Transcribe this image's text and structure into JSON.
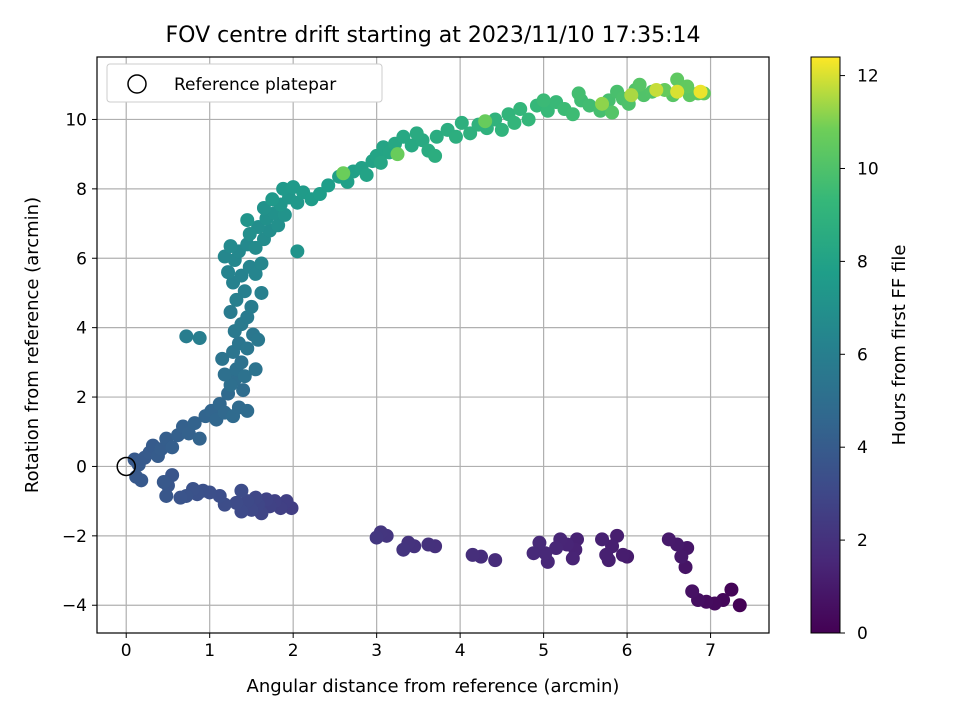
{
  "chart_data": {
    "type": "scatter",
    "title": "FOV centre drift starting at 2023/11/10 17:35:14",
    "xlabel": "Angular distance from reference (arcmin)",
    "ylabel": "Rotation from reference (arcmin)",
    "xlim": [
      -0.35,
      7.7
    ],
    "ylim": [
      -4.8,
      11.8
    ],
    "xticks": [
      0,
      1,
      2,
      3,
      4,
      5,
      6,
      7
    ],
    "yticks": [
      -4,
      -2,
      0,
      2,
      4,
      6,
      8,
      10
    ],
    "grid": true,
    "colormap": "viridis",
    "colorbar": {
      "label": "Hours from first FF file",
      "range": [
        0,
        12.4
      ],
      "ticks": [
        0,
        2,
        4,
        6,
        8,
        10,
        12
      ]
    },
    "legend": {
      "position": "top-left",
      "entries": [
        "Reference platepar"
      ]
    },
    "reference_point": {
      "x": 0,
      "y": 0,
      "label": "Reference platepar"
    },
    "points": [
      {
        "x": 7.35,
        "y": -4.0,
        "h": 0.05
      },
      {
        "x": 7.25,
        "y": -3.55,
        "h": 0.15
      },
      {
        "x": 7.15,
        "y": -3.85,
        "h": 0.25
      },
      {
        "x": 7.05,
        "y": -3.95,
        "h": 0.35
      },
      {
        "x": 6.95,
        "y": -3.9,
        "h": 0.45
      },
      {
        "x": 6.85,
        "y": -3.85,
        "h": 0.55
      },
      {
        "x": 6.78,
        "y": -3.6,
        "h": 0.65
      },
      {
        "x": 6.7,
        "y": -2.9,
        "h": 0.75
      },
      {
        "x": 6.72,
        "y": -2.35,
        "h": 0.85
      },
      {
        "x": 6.65,
        "y": -2.6,
        "h": 0.9
      },
      {
        "x": 6.6,
        "y": -2.25,
        "h": 0.95
      },
      {
        "x": 6.5,
        "y": -2.1,
        "h": 1.0
      },
      {
        "x": 6.0,
        "y": -2.6,
        "h": 1.05
      },
      {
        "x": 5.95,
        "y": -2.55,
        "h": 1.1
      },
      {
        "x": 5.88,
        "y": -2.0,
        "h": 1.15
      },
      {
        "x": 5.82,
        "y": -2.3,
        "h": 1.2
      },
      {
        "x": 5.78,
        "y": -2.7,
        "h": 1.22
      },
      {
        "x": 5.75,
        "y": -2.55,
        "h": 1.25
      },
      {
        "x": 5.7,
        "y": -2.1,
        "h": 1.28
      },
      {
        "x": 5.4,
        "y": -2.1,
        "h": 1.32
      },
      {
        "x": 5.38,
        "y": -2.4,
        "h": 1.36
      },
      {
        "x": 5.35,
        "y": -2.65,
        "h": 1.4
      },
      {
        "x": 5.28,
        "y": -2.25,
        "h": 1.45
      },
      {
        "x": 5.2,
        "y": -2.1,
        "h": 1.48
      },
      {
        "x": 5.15,
        "y": -2.35,
        "h": 1.52
      },
      {
        "x": 5.05,
        "y": -2.75,
        "h": 1.55
      },
      {
        "x": 5.02,
        "y": -2.5,
        "h": 1.58
      },
      {
        "x": 4.95,
        "y": -2.2,
        "h": 1.62
      },
      {
        "x": 4.88,
        "y": -2.5,
        "h": 1.66
      },
      {
        "x": 4.42,
        "y": -2.7,
        "h": 1.75
      },
      {
        "x": 4.25,
        "y": -2.6,
        "h": 1.8
      },
      {
        "x": 4.15,
        "y": -2.55,
        "h": 1.85
      },
      {
        "x": 3.7,
        "y": -2.3,
        "h": 1.9
      },
      {
        "x": 3.62,
        "y": -2.25,
        "h": 1.95
      },
      {
        "x": 3.45,
        "y": -2.3,
        "h": 2.0
      },
      {
        "x": 3.38,
        "y": -2.2,
        "h": 2.05
      },
      {
        "x": 3.32,
        "y": -2.4,
        "h": 2.1
      },
      {
        "x": 3.12,
        "y": -2.0,
        "h": 2.15
      },
      {
        "x": 3.05,
        "y": -1.9,
        "h": 2.2
      },
      {
        "x": 3.0,
        "y": -2.05,
        "h": 2.25
      },
      {
        "x": 1.98,
        "y": -1.2,
        "h": 2.55
      },
      {
        "x": 1.92,
        "y": -1.0,
        "h": 2.6
      },
      {
        "x": 1.85,
        "y": -1.2,
        "h": 2.65
      },
      {
        "x": 1.78,
        "y": -1.0,
        "h": 2.7
      },
      {
        "x": 1.72,
        "y": -1.15,
        "h": 2.75
      },
      {
        "x": 1.68,
        "y": -0.95,
        "h": 2.8
      },
      {
        "x": 1.62,
        "y": -1.35,
        "h": 2.85
      },
      {
        "x": 1.58,
        "y": -1.1,
        "h": 2.9
      },
      {
        "x": 1.55,
        "y": -0.9,
        "h": 2.95
      },
      {
        "x": 1.5,
        "y": -1.25,
        "h": 3.0
      },
      {
        "x": 1.45,
        "y": -1.0,
        "h": 3.05
      },
      {
        "x": 1.38,
        "y": -1.3,
        "h": 3.1
      },
      {
        "x": 1.32,
        "y": -1.05,
        "h": 3.15
      },
      {
        "x": 1.38,
        "y": -0.7,
        "h": 3.2
      },
      {
        "x": 1.18,
        "y": -1.1,
        "h": 3.25
      },
      {
        "x": 1.12,
        "y": -0.85,
        "h": 3.3
      },
      {
        "x": 1.0,
        "y": -0.75,
        "h": 3.35
      },
      {
        "x": 0.92,
        "y": -0.7,
        "h": 3.4
      },
      {
        "x": 0.85,
        "y": -0.8,
        "h": 3.45
      },
      {
        "x": 0.8,
        "y": -0.65,
        "h": 3.5
      },
      {
        "x": 0.72,
        "y": -0.85,
        "h": 3.55
      },
      {
        "x": 0.65,
        "y": -0.9,
        "h": 3.6
      },
      {
        "x": 0.55,
        "y": -0.25,
        "h": 3.65
      },
      {
        "x": 0.5,
        "y": -0.55,
        "h": 3.7
      },
      {
        "x": 0.48,
        "y": -0.85,
        "h": 3.75
      },
      {
        "x": 0.45,
        "y": -0.45,
        "h": 3.8
      },
      {
        "x": 0.12,
        "y": -0.3,
        "h": 3.85
      },
      {
        "x": 0.18,
        "y": -0.4,
        "h": 3.88
      },
      {
        "x": 0.1,
        "y": 0.2,
        "h": 3.9
      },
      {
        "x": 0.15,
        "y": 0.05,
        "h": 3.92
      },
      {
        "x": 0.22,
        "y": 0.25,
        "h": 3.95
      },
      {
        "x": 0.28,
        "y": 0.4,
        "h": 3.98
      },
      {
        "x": 0.32,
        "y": 0.6,
        "h": 4.0
      },
      {
        "x": 0.38,
        "y": 0.3,
        "h": 4.05
      },
      {
        "x": 0.42,
        "y": 0.5,
        "h": 4.1
      },
      {
        "x": 0.48,
        "y": 0.8,
        "h": 4.15
      },
      {
        "x": 0.55,
        "y": 0.55,
        "h": 4.2
      },
      {
        "x": 0.62,
        "y": 0.9,
        "h": 4.25
      },
      {
        "x": 0.68,
        "y": 1.15,
        "h": 4.3
      },
      {
        "x": 0.75,
        "y": 0.95,
        "h": 4.35
      },
      {
        "x": 0.82,
        "y": 1.25,
        "h": 4.4
      },
      {
        "x": 0.88,
        "y": 0.8,
        "h": 4.45
      },
      {
        "x": 0.95,
        "y": 1.45,
        "h": 4.5
      },
      {
        "x": 1.02,
        "y": 1.6,
        "h": 4.55
      },
      {
        "x": 1.08,
        "y": 1.35,
        "h": 4.6
      },
      {
        "x": 1.12,
        "y": 1.8,
        "h": 4.65
      },
      {
        "x": 1.18,
        "y": 1.55,
        "h": 4.7
      },
      {
        "x": 1.22,
        "y": 2.1,
        "h": 4.75
      },
      {
        "x": 1.28,
        "y": 1.45,
        "h": 4.8
      },
      {
        "x": 1.35,
        "y": 1.7,
        "h": 4.85
      },
      {
        "x": 1.45,
        "y": 1.6,
        "h": 4.9
      },
      {
        "x": 1.4,
        "y": 2.2,
        "h": 4.95
      },
      {
        "x": 1.3,
        "y": 2.5,
        "h": 5.0
      },
      {
        "x": 1.25,
        "y": 2.35,
        "h": 5.05
      },
      {
        "x": 1.18,
        "y": 2.65,
        "h": 5.1
      },
      {
        "x": 1.32,
        "y": 2.8,
        "h": 5.15
      },
      {
        "x": 1.38,
        "y": 3.0,
        "h": 5.2
      },
      {
        "x": 1.42,
        "y": 2.6,
        "h": 5.25
      },
      {
        "x": 1.55,
        "y": 2.8,
        "h": 5.3
      },
      {
        "x": 1.15,
        "y": 3.1,
        "h": 5.35
      },
      {
        "x": 1.28,
        "y": 3.3,
        "h": 5.4
      },
      {
        "x": 1.35,
        "y": 3.55,
        "h": 5.45
      },
      {
        "x": 1.45,
        "y": 3.4,
        "h": 5.5
      },
      {
        "x": 1.52,
        "y": 3.8,
        "h": 5.55
      },
      {
        "x": 1.58,
        "y": 3.65,
        "h": 5.6
      },
      {
        "x": 1.3,
        "y": 3.9,
        "h": 5.65
      },
      {
        "x": 1.38,
        "y": 4.1,
        "h": 5.7
      },
      {
        "x": 1.45,
        "y": 4.3,
        "h": 5.75
      },
      {
        "x": 1.25,
        "y": 4.45,
        "h": 5.8
      },
      {
        "x": 1.5,
        "y": 4.6,
        "h": 5.85
      },
      {
        "x": 0.72,
        "y": 3.75,
        "h": 5.9
      },
      {
        "x": 0.88,
        "y": 3.7,
        "h": 5.95
      },
      {
        "x": 1.32,
        "y": 4.8,
        "h": 6.0
      },
      {
        "x": 1.42,
        "y": 5.05,
        "h": 6.05
      },
      {
        "x": 1.62,
        "y": 5.0,
        "h": 6.1
      },
      {
        "x": 1.28,
        "y": 5.3,
        "h": 6.15
      },
      {
        "x": 1.38,
        "y": 5.5,
        "h": 6.2
      },
      {
        "x": 1.22,
        "y": 5.6,
        "h": 6.25
      },
      {
        "x": 1.48,
        "y": 5.75,
        "h": 6.3
      },
      {
        "x": 1.55,
        "y": 5.55,
        "h": 6.35
      },
      {
        "x": 1.62,
        "y": 5.85,
        "h": 6.4
      },
      {
        "x": 1.3,
        "y": 5.95,
        "h": 6.45
      },
      {
        "x": 1.18,
        "y": 6.05,
        "h": 6.5
      },
      {
        "x": 1.35,
        "y": 6.2,
        "h": 6.55
      },
      {
        "x": 1.45,
        "y": 6.4,
        "h": 6.6
      },
      {
        "x": 1.25,
        "y": 6.35,
        "h": 6.65
      },
      {
        "x": 1.55,
        "y": 6.3,
        "h": 6.7
      },
      {
        "x": 1.65,
        "y": 6.55,
        "h": 6.75
      },
      {
        "x": 1.72,
        "y": 6.8,
        "h": 6.8
      },
      {
        "x": 1.58,
        "y": 6.9,
        "h": 6.85
      },
      {
        "x": 1.48,
        "y": 6.7,
        "h": 6.9
      },
      {
        "x": 1.82,
        "y": 6.95,
        "h": 6.95
      },
      {
        "x": 1.68,
        "y": 7.15,
        "h": 7.0
      },
      {
        "x": 1.78,
        "y": 7.3,
        "h": 7.05
      },
      {
        "x": 1.65,
        "y": 7.45,
        "h": 7.1
      },
      {
        "x": 1.9,
        "y": 7.25,
        "h": 7.15
      },
      {
        "x": 2.05,
        "y": 6.2,
        "h": 7.2
      },
      {
        "x": 1.45,
        "y": 7.1,
        "h": 7.25
      },
      {
        "x": 1.85,
        "y": 7.55,
        "h": 7.3
      },
      {
        "x": 1.95,
        "y": 7.75,
        "h": 7.35
      },
      {
        "x": 2.05,
        "y": 7.6,
        "h": 7.4
      },
      {
        "x": 1.75,
        "y": 7.7,
        "h": 7.45
      },
      {
        "x": 1.88,
        "y": 8.0,
        "h": 7.5
      },
      {
        "x": 2.0,
        "y": 8.05,
        "h": 7.55
      },
      {
        "x": 2.12,
        "y": 7.9,
        "h": 7.6
      },
      {
        "x": 2.22,
        "y": 7.7,
        "h": 7.65
      },
      {
        "x": 2.32,
        "y": 7.85,
        "h": 7.7
      },
      {
        "x": 2.42,
        "y": 8.1,
        "h": 7.75
      },
      {
        "x": 2.55,
        "y": 8.35,
        "h": 7.8
      },
      {
        "x": 2.65,
        "y": 8.2,
        "h": 7.85
      },
      {
        "x": 2.72,
        "y": 8.5,
        "h": 7.9
      },
      {
        "x": 2.82,
        "y": 8.6,
        "h": 7.95
      },
      {
        "x": 2.95,
        "y": 8.8,
        "h": 8.0
      },
      {
        "x": 2.88,
        "y": 8.4,
        "h": 8.05
      },
      {
        "x": 3.0,
        "y": 8.95,
        "h": 8.1
      },
      {
        "x": 3.08,
        "y": 9.2,
        "h": 8.15
      },
      {
        "x": 3.15,
        "y": 9.05,
        "h": 8.2
      },
      {
        "x": 3.05,
        "y": 8.75,
        "h": 8.25
      },
      {
        "x": 3.22,
        "y": 9.3,
        "h": 8.3
      },
      {
        "x": 3.32,
        "y": 9.5,
        "h": 8.35
      },
      {
        "x": 3.42,
        "y": 9.25,
        "h": 8.4
      },
      {
        "x": 3.55,
        "y": 9.4,
        "h": 8.45
      },
      {
        "x": 3.48,
        "y": 9.6,
        "h": 8.5
      },
      {
        "x": 3.62,
        "y": 9.1,
        "h": 8.55
      },
      {
        "x": 3.72,
        "y": 9.5,
        "h": 8.6
      },
      {
        "x": 3.85,
        "y": 9.7,
        "h": 8.65
      },
      {
        "x": 3.7,
        "y": 8.95,
        "h": 8.7
      },
      {
        "x": 3.95,
        "y": 9.5,
        "h": 8.75
      },
      {
        "x": 4.02,
        "y": 9.9,
        "h": 8.8
      },
      {
        "x": 4.12,
        "y": 9.6,
        "h": 8.85
      },
      {
        "x": 4.22,
        "y": 9.85,
        "h": 8.9
      },
      {
        "x": 4.32,
        "y": 9.75,
        "h": 8.95
      },
      {
        "x": 4.42,
        "y": 10.0,
        "h": 9.0
      },
      {
        "x": 4.5,
        "y": 9.7,
        "h": 9.05
      },
      {
        "x": 4.58,
        "y": 10.15,
        "h": 9.1
      },
      {
        "x": 4.65,
        "y": 9.9,
        "h": 9.15
      },
      {
        "x": 4.72,
        "y": 10.3,
        "h": 9.2
      },
      {
        "x": 4.82,
        "y": 10.0,
        "h": 9.25
      },
      {
        "x": 4.92,
        "y": 10.4,
        "h": 9.3
      },
      {
        "x": 5.05,
        "y": 10.25,
        "h": 9.35
      },
      {
        "x": 5.15,
        "y": 10.5,
        "h": 9.4
      },
      {
        "x": 5.0,
        "y": 10.55,
        "h": 9.45
      },
      {
        "x": 5.25,
        "y": 10.3,
        "h": 9.5
      },
      {
        "x": 5.35,
        "y": 10.15,
        "h": 9.55
      },
      {
        "x": 5.45,
        "y": 10.55,
        "h": 9.6
      },
      {
        "x": 5.55,
        "y": 10.4,
        "h": 9.65
      },
      {
        "x": 5.42,
        "y": 10.75,
        "h": 9.7
      },
      {
        "x": 5.68,
        "y": 10.25,
        "h": 9.75
      },
      {
        "x": 5.78,
        "y": 10.55,
        "h": 9.8
      },
      {
        "x": 5.88,
        "y": 10.8,
        "h": 9.85
      },
      {
        "x": 5.95,
        "y": 10.6,
        "h": 9.9
      },
      {
        "x": 6.02,
        "y": 10.45,
        "h": 9.95
      },
      {
        "x": 6.1,
        "y": 10.85,
        "h": 10.0
      },
      {
        "x": 6.2,
        "y": 10.7,
        "h": 10.05
      },
      {
        "x": 6.3,
        "y": 10.8,
        "h": 10.1
      },
      {
        "x": 5.82,
        "y": 10.2,
        "h": 10.15
      },
      {
        "x": 6.15,
        "y": 11.0,
        "h": 10.2
      },
      {
        "x": 6.55,
        "y": 10.7,
        "h": 10.25
      },
      {
        "x": 6.65,
        "y": 10.9,
        "h": 10.3
      },
      {
        "x": 6.75,
        "y": 10.7,
        "h": 10.35
      },
      {
        "x": 6.85,
        "y": 10.75,
        "h": 10.4
      },
      {
        "x": 6.6,
        "y": 11.15,
        "h": 10.45
      },
      {
        "x": 6.72,
        "y": 10.95,
        "h": 10.5
      },
      {
        "x": 6.92,
        "y": 10.75,
        "h": 10.55
      },
      {
        "x": 6.45,
        "y": 10.85,
        "h": 10.6
      },
      {
        "x": 4.3,
        "y": 9.95,
        "h": 10.65
      },
      {
        "x": 3.25,
        "y": 9.0,
        "h": 10.7
      },
      {
        "x": 2.6,
        "y": 8.45,
        "h": 10.75
      },
      {
        "x": 5.7,
        "y": 10.45,
        "h": 11.2
      },
      {
        "x": 6.05,
        "y": 10.7,
        "h": 11.5
      },
      {
        "x": 6.35,
        "y": 10.85,
        "h": 11.8
      },
      {
        "x": 6.6,
        "y": 10.8,
        "h": 12.0
      },
      {
        "x": 6.88,
        "y": 10.8,
        "h": 12.2
      }
    ]
  }
}
